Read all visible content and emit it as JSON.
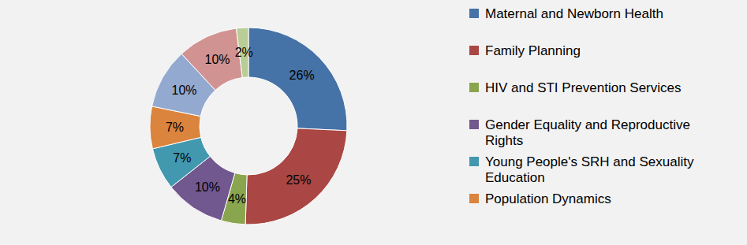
{
  "chart_data": {
    "type": "pie",
    "categories": [
      "Maternal and Newborn Health",
      "Family Planning",
      "HIV and STI Prevention Services",
      "Gender Equality and Reproductive Rights",
      "Young People's SRH and Sexuality Education",
      "Population Dynamics",
      null,
      null,
      null
    ],
    "values": [
      26,
      25,
      4,
      10,
      7,
      7,
      10,
      10,
      2
    ],
    "value_labels": [
      "26%",
      "25%",
      "4%",
      "10%",
      "7%",
      "7%",
      "10%",
      "10%",
      "2%"
    ],
    "colors": [
      "#4572a7",
      "#aa4643",
      "#89a54e",
      "#71588f",
      "#4198af",
      "#db843d",
      "#93a9cf",
      "#d19392",
      "#b9cd96"
    ],
    "data_labels": true,
    "legend": "right"
  }
}
